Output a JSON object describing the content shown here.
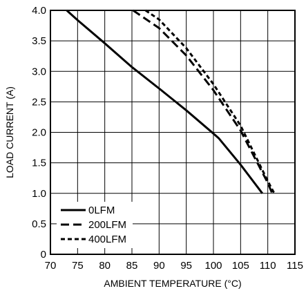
{
  "chart_data": {
    "type": "line",
    "xlabel": "AMBIENT TEMPERATURE (°C)",
    "ylabel": "LOAD CURRENT (A)",
    "xlim": [
      70,
      115
    ],
    "ylim": [
      0,
      4.0
    ],
    "x_ticks": [
      "70",
      "75",
      "80",
      "85",
      "90",
      "95",
      "100",
      "105",
      "110",
      "115"
    ],
    "y_ticks": [
      "0",
      "0.5",
      "1.0",
      "1.5",
      "2.0",
      "2.5",
      "3.0",
      "3.5",
      "4.0"
    ],
    "grid": true,
    "legend_position": "bottom-left",
    "series": [
      {
        "name": "0LFM",
        "line_style": "solid",
        "color": "#000000",
        "points": [
          [
            73,
            4.0
          ],
          [
            75,
            3.84
          ],
          [
            80,
            3.46
          ],
          [
            85,
            3.07
          ],
          [
            90,
            2.72
          ],
          [
            95,
            2.36
          ],
          [
            100,
            1.98
          ],
          [
            101,
            1.9
          ],
          [
            105,
            1.47
          ],
          [
            109,
            1.0
          ]
        ]
      },
      {
        "name": "200LFM",
        "line_style": "dashed",
        "color": "#000000",
        "points": [
          [
            85.2,
            4.0
          ],
          [
            90,
            3.71
          ],
          [
            95,
            3.26
          ],
          [
            100,
            2.69
          ],
          [
            105,
            2.03
          ],
          [
            110,
            1.17
          ],
          [
            110.8,
            1.0
          ]
        ]
      },
      {
        "name": "400LFM",
        "line_style": "dotted",
        "color": "#000000",
        "points": [
          [
            87.5,
            4.0
          ],
          [
            90,
            3.85
          ],
          [
            95,
            3.38
          ],
          [
            100,
            2.79
          ],
          [
            105,
            2.11
          ],
          [
            110,
            1.2
          ],
          [
            111.2,
            1.0
          ]
        ]
      }
    ]
  }
}
